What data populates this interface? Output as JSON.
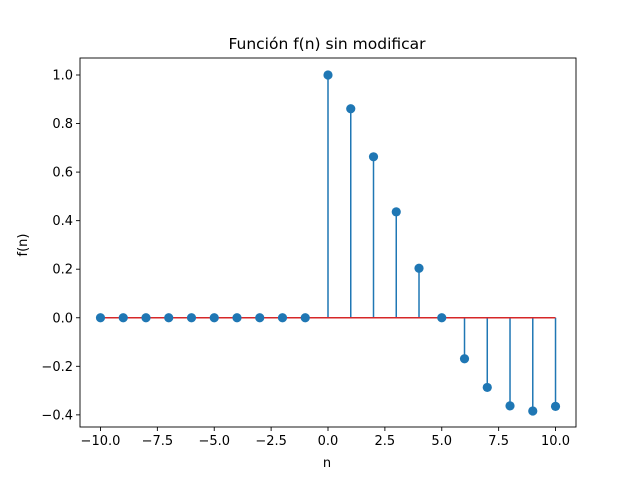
{
  "chart_data": {
    "type": "stem",
    "title": "Función f(n) sin modificar",
    "xlabel": "n",
    "ylabel": "f(n)",
    "xlim": [
      -10.9,
      10.9
    ],
    "ylim": [
      -0.45,
      1.07
    ],
    "x_ticks": [
      -10.0,
      -7.5,
      -5.0,
      -2.5,
      0.0,
      2.5,
      5.0,
      7.5,
      10.0
    ],
    "x_tick_labels": [
      "−10.0",
      "−7.5",
      "−5.0",
      "−2.5",
      "0.0",
      "2.5",
      "5.0",
      "7.5",
      "10.0"
    ],
    "y_ticks": [
      -0.4,
      -0.2,
      0.0,
      0.2,
      0.4,
      0.6,
      0.8,
      1.0
    ],
    "y_tick_labels": [
      "−0.4",
      "−0.2",
      "0.0",
      "0.2",
      "0.4",
      "0.6",
      "0.8",
      "1.0"
    ],
    "grid": false,
    "colors": {
      "stem": "#1f77b4",
      "marker": "#1f77b4",
      "baseline": "#d62728"
    },
    "series": [
      {
        "x": [
          -10,
          -9,
          -8,
          -7,
          -6,
          -5,
          -4,
          -3,
          -2,
          -1,
          0,
          1,
          2,
          3,
          4,
          5,
          6,
          7,
          8,
          9,
          10
        ],
        "values": [
          0,
          0,
          0,
          0,
          0,
          0,
          0,
          0,
          0,
          0,
          1.0,
          0.861,
          0.663,
          0.436,
          0.204,
          0.0,
          -0.169,
          -0.287,
          -0.363,
          -0.384,
          -0.365
        ]
      }
    ]
  }
}
